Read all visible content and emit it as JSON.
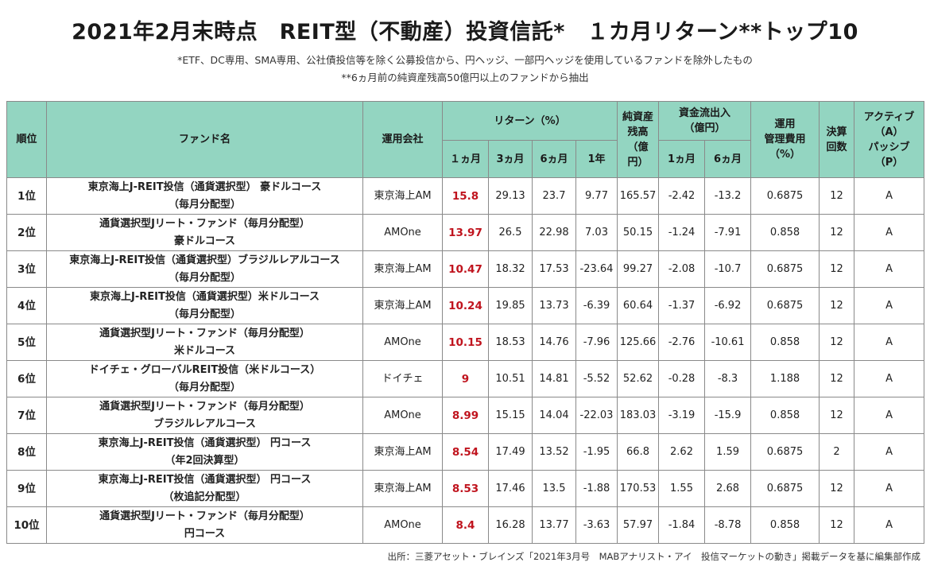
{
  "title": "2021年2月末時点　REIT型（不動産）投資信託*　１カ月リターン**トップ10",
  "notes": [
    "*ETF、DC専用、SMA専用、公社債投信等を除く公募投信から、円ヘッジ、一部円ヘッジを使用しているファンドを除外したもの",
    "**6ヵ月前の純資産残高50億円以上のファンドから抽出"
  ],
  "headers": {
    "rank": "順位",
    "fund": "ファンド名",
    "company": "運用会社",
    "return_group": "リターン（%）",
    "return_1m": "１ヵ月",
    "return_3m": "3ヵ月",
    "return_6m": "6ヵ月",
    "return_1y": "1年",
    "net_assets": [
      "純資産",
      "残高",
      "（億",
      "円）"
    ],
    "flow_group": [
      "資金流出入",
      "（億円）"
    ],
    "flow_1m": "1ヵ月",
    "flow_6m": "6ヵ月",
    "fee": [
      "運用",
      "管理費用",
      "（%）"
    ],
    "settlements": [
      "決算",
      "回数"
    ],
    "style": [
      "アクティブ",
      "（A）",
      "パッシブ",
      "（P）"
    ]
  },
  "rows": [
    {
      "rank": "1位",
      "fund": [
        "東京海上J-REIT投信（通貨選択型） 豪ドルコース",
        "（毎月分配型）"
      ],
      "company": "東京海上AM",
      "r1m": "15.8",
      "r3m": "29.13",
      "r6m": "23.7",
      "r1y": "9.77",
      "assets": "165.57",
      "f1m": "-2.42",
      "f6m": "-13.2",
      "fee": "0.6875",
      "settle": "12",
      "style": "A"
    },
    {
      "rank": "2位",
      "fund": [
        "通貨選択型Jリート・ファンド（毎月分配型）",
        "豪ドルコース"
      ],
      "company": "AMOne",
      "r1m": "13.97",
      "r3m": "26.5",
      "r6m": "22.98",
      "r1y": "7.03",
      "assets": "50.15",
      "f1m": "-1.24",
      "f6m": "-7.91",
      "fee": "0.858",
      "settle": "12",
      "style": "A"
    },
    {
      "rank": "3位",
      "fund": [
        "東京海上J-REIT投信（通貨選択型）ブラジルレアルコース",
        "（毎月分配型）"
      ],
      "company": "東京海上AM",
      "r1m": "10.47",
      "r3m": "18.32",
      "r6m": "17.53",
      "r1y": "-23.64",
      "assets": "99.27",
      "f1m": "-2.08",
      "f6m": "-10.7",
      "fee": "0.6875",
      "settle": "12",
      "style": "A"
    },
    {
      "rank": "4位",
      "fund": [
        "東京海上J-REIT投信（通貨選択型）米ドルコース",
        "（毎月分配型）"
      ],
      "company": "東京海上AM",
      "r1m": "10.24",
      "r3m": "19.85",
      "r6m": "13.73",
      "r1y": "-6.39",
      "assets": "60.64",
      "f1m": "-1.37",
      "f6m": "-6.92",
      "fee": "0.6875",
      "settle": "12",
      "style": "A"
    },
    {
      "rank": "5位",
      "fund": [
        "通貨選択型Jリート・ファンド（毎月分配型）",
        "米ドルコース"
      ],
      "company": "AMOne",
      "r1m": "10.15",
      "r3m": "18.53",
      "r6m": "14.76",
      "r1y": "-7.96",
      "assets": "125.66",
      "f1m": "-2.76",
      "f6m": "-10.61",
      "fee": "0.858",
      "settle": "12",
      "style": "A"
    },
    {
      "rank": "6位",
      "fund": [
        "ドイチェ・グローバルREIT投信（米ドルコース）",
        "（毎月分配型）"
      ],
      "company": "ドイチェ",
      "r1m": "9",
      "r3m": "10.51",
      "r6m": "14.81",
      "r1y": "-5.52",
      "assets": "52.62",
      "f1m": "-0.28",
      "f6m": "-8.3",
      "fee": "1.188",
      "settle": "12",
      "style": "A"
    },
    {
      "rank": "7位",
      "fund": [
        "通貨選択型Jリート・ファンド（毎月分配型）",
        "ブラジルレアルコース"
      ],
      "company": "AMOne",
      "r1m": "8.99",
      "r3m": "15.15",
      "r6m": "14.04",
      "r1y": "-22.03",
      "assets": "183.03",
      "f1m": "-3.19",
      "f6m": "-15.9",
      "fee": "0.858",
      "settle": "12",
      "style": "A"
    },
    {
      "rank": "8位",
      "fund": [
        "東京海上J-REIT投信（通貨選択型） 円コース",
        "（年2回決算型）"
      ],
      "company": "東京海上AM",
      "r1m": "8.54",
      "r3m": "17.49",
      "r6m": "13.52",
      "r1y": "-1.95",
      "assets": "66.8",
      "f1m": "2.62",
      "f6m": "1.59",
      "fee": "0.6875",
      "settle": "2",
      "style": "A"
    },
    {
      "rank": "9位",
      "fund": [
        "東京海上J-REIT投信（通貨選択型） 円コース",
        "（枚追記分配型）"
      ],
      "company": "東京海上AM",
      "r1m": "8.53",
      "r3m": "17.46",
      "r6m": "13.5",
      "r1y": "-1.88",
      "assets": "170.53",
      "f1m": "1.55",
      "f6m": "2.68",
      "fee": "0.6875",
      "settle": "12",
      "style": "A"
    },
    {
      "rank": "10位",
      "fund": [
        "通貨選択型Jリート・ファンド（毎月分配型）",
        "円コース"
      ],
      "company": "AMOne",
      "r1m": "8.4",
      "r3m": "16.28",
      "r6m": "13.77",
      "r1y": "-3.63",
      "assets": "57.97",
      "f1m": "-1.84",
      "f6m": "-8.78",
      "fee": "0.858",
      "settle": "12",
      "style": "A"
    }
  ],
  "source": "出所：三菱アセット・ブレインズ「2021年3月号　MABアナリスト・アイ　投信マーケットの動き」掲載データを基に編集部作成",
  "colors": {
    "header_bg": "#93d5c1",
    "highlight_red": "#c0141e",
    "border": "#8a8a8a"
  }
}
